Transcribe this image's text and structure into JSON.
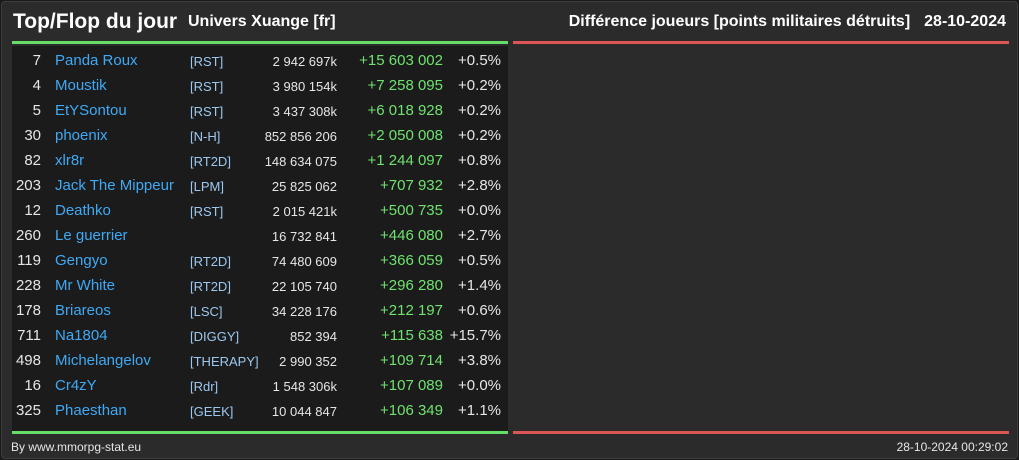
{
  "header": {
    "title": "Top/Flop du jour",
    "universe": "Univers Xuange [fr]",
    "subtitle": "Différence joueurs [points militaires détruits]",
    "date": "28-10-2024"
  },
  "colors": {
    "name_link": "#3fa9f5",
    "gain": "#6fe26f",
    "top_line": "#66dd66",
    "flop_line": "#dd5555"
  },
  "rows": [
    {
      "rank": "7",
      "name": "Panda Roux",
      "ally": "[RST]",
      "points": "2 942 697k",
      "diff": "+15 603 002",
      "pct": "+0.5%"
    },
    {
      "rank": "4",
      "name": "Moustik",
      "ally": "[RST]",
      "points": "3 980 154k",
      "diff": "+7 258 095",
      "pct": "+0.2%"
    },
    {
      "rank": "5",
      "name": "EtYSontou",
      "ally": "[RST]",
      "points": "3 437 308k",
      "diff": "+6 018 928",
      "pct": "+0.2%"
    },
    {
      "rank": "30",
      "name": "phoenix",
      "ally": "[N-H]",
      "points": "852 856 206",
      "diff": "+2 050 008",
      "pct": "+0.2%"
    },
    {
      "rank": "82",
      "name": "xlr8r",
      "ally": "[RT2D]",
      "points": "148 634 075",
      "diff": "+1 244 097",
      "pct": "+0.8%"
    },
    {
      "rank": "203",
      "name": "Jack The Mippeur",
      "ally": "[LPM]",
      "points": "25 825 062",
      "diff": "+707 932",
      "pct": "+2.8%"
    },
    {
      "rank": "12",
      "name": "Deathko",
      "ally": "[RST]",
      "points": "2 015 421k",
      "diff": "+500 735",
      "pct": "+0.0%"
    },
    {
      "rank": "260",
      "name": "Le guerrier",
      "ally": "",
      "points": "16 732 841",
      "diff": "+446 080",
      "pct": "+2.7%"
    },
    {
      "rank": "119",
      "name": "Gengyo",
      "ally": "[RT2D]",
      "points": "74 480 609",
      "diff": "+366 059",
      "pct": "+0.5%"
    },
    {
      "rank": "228",
      "name": "Mr White",
      "ally": "[RT2D]",
      "points": "22 105 740",
      "diff": "+296 280",
      "pct": "+1.4%"
    },
    {
      "rank": "178",
      "name": "Briareos",
      "ally": "[LSC]",
      "points": "34 228 176",
      "diff": "+212 197",
      "pct": "+0.6%"
    },
    {
      "rank": "711",
      "name": "Na1804",
      "ally": "[DIGGY]",
      "points": "852 394",
      "diff": "+115 638",
      "pct": "+15.7%"
    },
    {
      "rank": "498",
      "name": "Michelangelov",
      "ally": "[THERAPY]",
      "points": "2 990 352",
      "diff": "+109 714",
      "pct": "+3.8%"
    },
    {
      "rank": "16",
      "name": "Cr4zY",
      "ally": "[Rdr]",
      "points": "1 548 306k",
      "diff": "+107 089",
      "pct": "+0.0%"
    },
    {
      "rank": "325",
      "name": "Phaesthan",
      "ally": "[GEEK]",
      "points": "10 044 847",
      "diff": "+106 349",
      "pct": "+1.1%"
    }
  ],
  "footer": {
    "source": "By www.mmorpg-stat.eu",
    "timestamp": "28-10-2024 00:29:02"
  }
}
